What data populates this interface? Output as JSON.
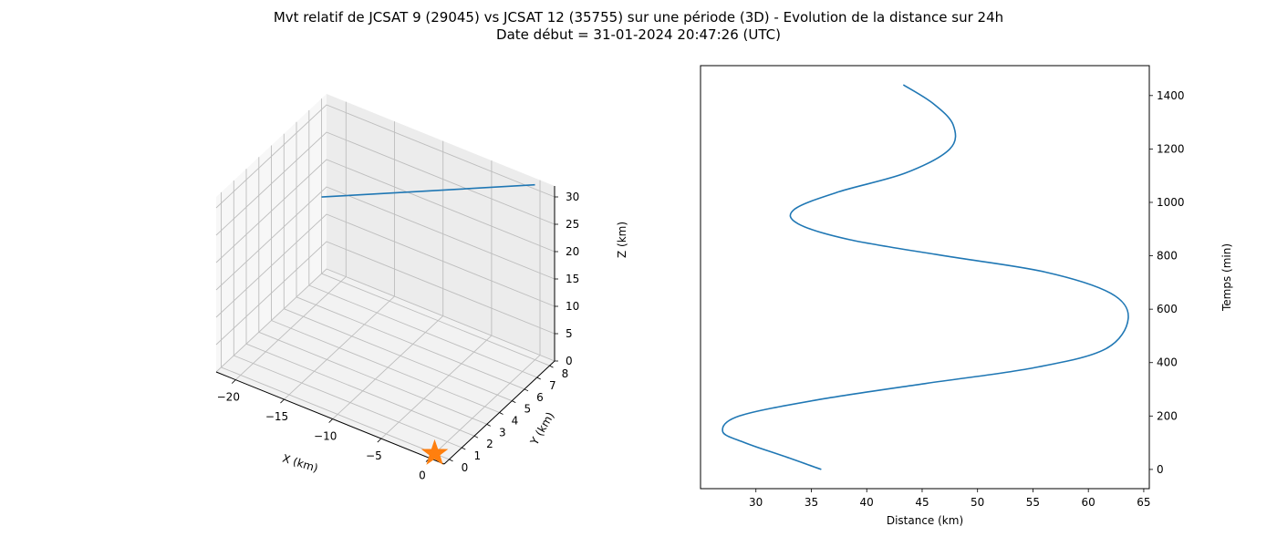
{
  "title_line1": "Mvt relatif de JCSAT 9 (29045) vs JCSAT 12 (35755) sur une période (3D) - Evolution de la distance sur 24h",
  "title_line2": "Date début = 31-01-2024 20:47:26 (UTC)",
  "chart_data": [
    {
      "type": "line3d",
      "xlabel": "X (km)",
      "ylabel": "Y (km)",
      "zlabel": "Z (km)",
      "x_ticks": [
        -20,
        -15,
        -10,
        -5,
        0
      ],
      "y_ticks": [
        0,
        1,
        2,
        3,
        4,
        5,
        6,
        7,
        8
      ],
      "z_ticks": [
        0,
        5,
        10,
        15,
        20,
        25,
        30
      ],
      "xlim": [
        -22,
        1.5
      ],
      "ylim": [
        -0.4,
        8.4
      ],
      "zlim": [
        0,
        32
      ],
      "grid": true,
      "series": [
        {
          "type": "line",
          "color": "#1f77b4",
          "points": [
            [
              -22,
              8,
              14
            ],
            [
              -11,
              8,
              23
            ],
            [
              0,
              8,
              32
            ]
          ]
        },
        {
          "type": "marker",
          "marker": "star",
          "color": "#ff7f0e",
          "points": [
            [
              0,
              0,
              0
            ]
          ]
        }
      ]
    },
    {
      "type": "line",
      "xlabel": "Distance (km)",
      "ylabel": "Temps (min)",
      "xlim": [
        25,
        65.5
      ],
      "ylim": [
        -72,
        1512
      ],
      "x_ticks": [
        30,
        35,
        40,
        45,
        50,
        55,
        60,
        65
      ],
      "y_ticks": [
        0,
        200,
        400,
        600,
        800,
        1000,
        1200,
        1400
      ],
      "y_axis_position": "right",
      "series": [
        {
          "color": "#1f77b4",
          "x": [
            35.9,
            32.5,
            29.0,
            27.0,
            28.5,
            35.5,
            45.0,
            55.0,
            61.5,
            63.6,
            62.0,
            56.0,
            47.0,
            38.5,
            33.8,
            33.5,
            37.5,
            43.5,
            47.5,
            47.8,
            46.0,
            43.3
          ],
          "y": [
            0,
            50,
            100,
            142,
            200,
            260,
            320,
            380,
            450,
            565,
            660,
            740,
            800,
            860,
            920,
            975,
            1040,
            1110,
            1200,
            1290,
            1370,
            1440
          ]
        }
      ]
    }
  ]
}
